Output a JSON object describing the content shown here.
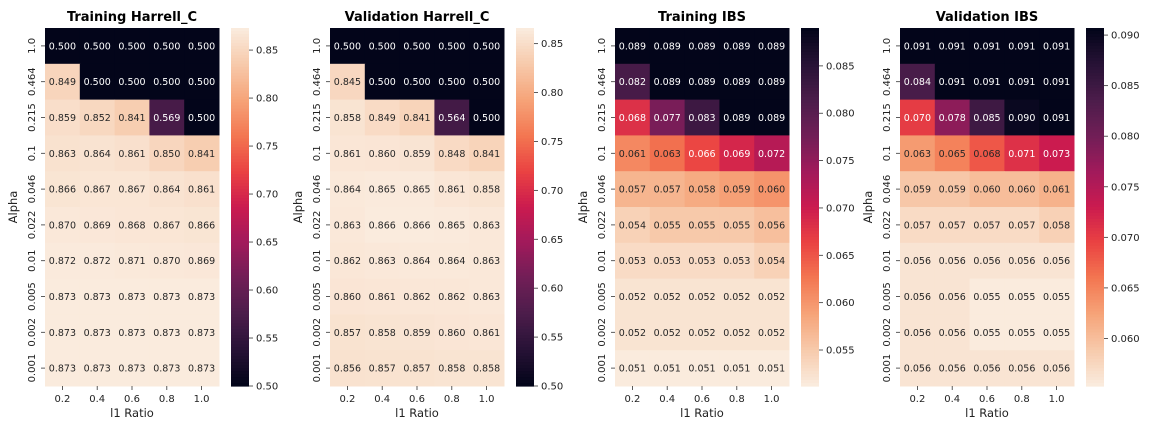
{
  "chart_data": [
    {
      "type": "heatmap",
      "title": "Training Harrell_C",
      "xlabel": "l1 Ratio",
      "ylabel": "Alpha",
      "x": [
        "0.2",
        "0.4",
        "0.6",
        "0.8",
        "1.0"
      ],
      "y": [
        "1.0",
        "0.464",
        "0.215",
        "0.1",
        "0.046",
        "0.022",
        "0.01",
        "0.005",
        "0.002",
        "0.001"
      ],
      "values": [
        [
          "0.500",
          "0.500",
          "0.500",
          "0.500",
          "0.500"
        ],
        [
          "0.849",
          "0.500",
          "0.500",
          "0.500",
          "0.500"
        ],
        [
          "0.859",
          "0.852",
          "0.841",
          "0.569",
          "0.500"
        ],
        [
          "0.863",
          "0.864",
          "0.861",
          "0.850",
          "0.841"
        ],
        [
          "0.866",
          "0.867",
          "0.867",
          "0.864",
          "0.861"
        ],
        [
          "0.870",
          "0.869",
          "0.868",
          "0.867",
          "0.866"
        ],
        [
          "0.872",
          "0.872",
          "0.871",
          "0.870",
          "0.869"
        ],
        [
          "0.873",
          "0.873",
          "0.873",
          "0.873",
          "0.873"
        ],
        [
          "0.873",
          "0.873",
          "0.873",
          "0.873",
          "0.873"
        ],
        [
          "0.873",
          "0.873",
          "0.873",
          "0.873",
          "0.873"
        ]
      ],
      "vmin": 0.5,
      "vmax": 0.873,
      "colorbar_ticks": [
        "0.50",
        "0.55",
        "0.60",
        "0.65",
        "0.70",
        "0.75",
        "0.80",
        "0.85"
      ],
      "colormap": "rocket"
    },
    {
      "type": "heatmap",
      "title": "Validation Harrell_C",
      "xlabel": "l1 Ratio",
      "ylabel": "Alpha",
      "x": [
        "0.2",
        "0.4",
        "0.6",
        "0.8",
        "1.0"
      ],
      "y": [
        "1.0",
        "0.464",
        "0.215",
        "0.1",
        "0.046",
        "0.022",
        "0.01",
        "0.005",
        "0.002",
        "0.001"
      ],
      "values": [
        [
          "0.500",
          "0.500",
          "0.500",
          "0.500",
          "0.500"
        ],
        [
          "0.845",
          "0.500",
          "0.500",
          "0.500",
          "0.500"
        ],
        [
          "0.858",
          "0.849",
          "0.841",
          "0.564",
          "0.500"
        ],
        [
          "0.861",
          "0.860",
          "0.859",
          "0.848",
          "0.841"
        ],
        [
          "0.864",
          "0.865",
          "0.865",
          "0.861",
          "0.858"
        ],
        [
          "0.863",
          "0.866",
          "0.866",
          "0.865",
          "0.863"
        ],
        [
          "0.862",
          "0.863",
          "0.864",
          "0.864",
          "0.863"
        ],
        [
          "0.860",
          "0.861",
          "0.862",
          "0.862",
          "0.863"
        ],
        [
          "0.857",
          "0.858",
          "0.859",
          "0.860",
          "0.861"
        ],
        [
          "0.856",
          "0.857",
          "0.857",
          "0.858",
          "0.858"
        ]
      ],
      "vmin": 0.5,
      "vmax": 0.866,
      "colorbar_ticks": [
        "0.50",
        "0.55",
        "0.60",
        "0.65",
        "0.70",
        "0.75",
        "0.80",
        "0.85"
      ],
      "colormap": "rocket"
    },
    {
      "type": "heatmap",
      "title": "Training IBS",
      "xlabel": "l1 Ratio",
      "ylabel": "Alpha",
      "x": [
        "0.2",
        "0.4",
        "0.6",
        "0.8",
        "1.0"
      ],
      "y": [
        "1.0",
        "0.464",
        "0.215",
        "0.1",
        "0.046",
        "0.022",
        "0.01",
        "0.005",
        "0.002",
        "0.001"
      ],
      "values": [
        [
          "0.089",
          "0.089",
          "0.089",
          "0.089",
          "0.089"
        ],
        [
          "0.082",
          "0.089",
          "0.089",
          "0.089",
          "0.089"
        ],
        [
          "0.068",
          "0.077",
          "0.083",
          "0.089",
          "0.089"
        ],
        [
          "0.061",
          "0.063",
          "0.066",
          "0.069",
          "0.072"
        ],
        [
          "0.057",
          "0.057",
          "0.058",
          "0.059",
          "0.060"
        ],
        [
          "0.054",
          "0.055",
          "0.055",
          "0.055",
          "0.056"
        ],
        [
          "0.053",
          "0.053",
          "0.053",
          "0.053",
          "0.054"
        ],
        [
          "0.052",
          "0.052",
          "0.052",
          "0.052",
          "0.052"
        ],
        [
          "0.052",
          "0.052",
          "0.052",
          "0.052",
          "0.052"
        ],
        [
          "0.051",
          "0.051",
          "0.051",
          "0.051",
          "0.051"
        ]
      ],
      "vmin": 0.0512,
      "vmax": 0.089,
      "colorbar_ticks": [
        "0.055",
        "0.060",
        "0.065",
        "0.070",
        "0.075",
        "0.080",
        "0.085"
      ],
      "colormap": "rocket_r"
    },
    {
      "type": "heatmap",
      "title": "Validation IBS",
      "xlabel": "l1 Ratio",
      "ylabel": "Alpha",
      "x": [
        "0.2",
        "0.4",
        "0.6",
        "0.8",
        "1.0"
      ],
      "y": [
        "1.0",
        "0.464",
        "0.215",
        "0.1",
        "0.046",
        "0.022",
        "0.01",
        "0.005",
        "0.002",
        "0.001"
      ],
      "values": [
        [
          "0.091",
          "0.091",
          "0.091",
          "0.091",
          "0.091"
        ],
        [
          "0.084",
          "0.091",
          "0.091",
          "0.091",
          "0.091"
        ],
        [
          "0.070",
          "0.078",
          "0.085",
          "0.090",
          "0.091"
        ],
        [
          "0.063",
          "0.065",
          "0.068",
          "0.071",
          "0.073"
        ],
        [
          "0.059",
          "0.059",
          "0.060",
          "0.060",
          "0.061"
        ],
        [
          "0.057",
          "0.057",
          "0.057",
          "0.057",
          "0.058"
        ],
        [
          "0.056",
          "0.056",
          "0.056",
          "0.056",
          "0.056"
        ],
        [
          "0.056",
          "0.056",
          "0.055",
          "0.055",
          "0.055"
        ],
        [
          "0.056",
          "0.056",
          "0.055",
          "0.055",
          "0.055"
        ],
        [
          "0.056",
          "0.056",
          "0.056",
          "0.056",
          "0.056"
        ]
      ],
      "vmin": 0.0553,
      "vmax": 0.0907,
      "colorbar_ticks": [
        "0.060",
        "0.065",
        "0.070",
        "0.075",
        "0.080",
        "0.085",
        "0.090"
      ],
      "colormap": "rocket_r"
    }
  ]
}
